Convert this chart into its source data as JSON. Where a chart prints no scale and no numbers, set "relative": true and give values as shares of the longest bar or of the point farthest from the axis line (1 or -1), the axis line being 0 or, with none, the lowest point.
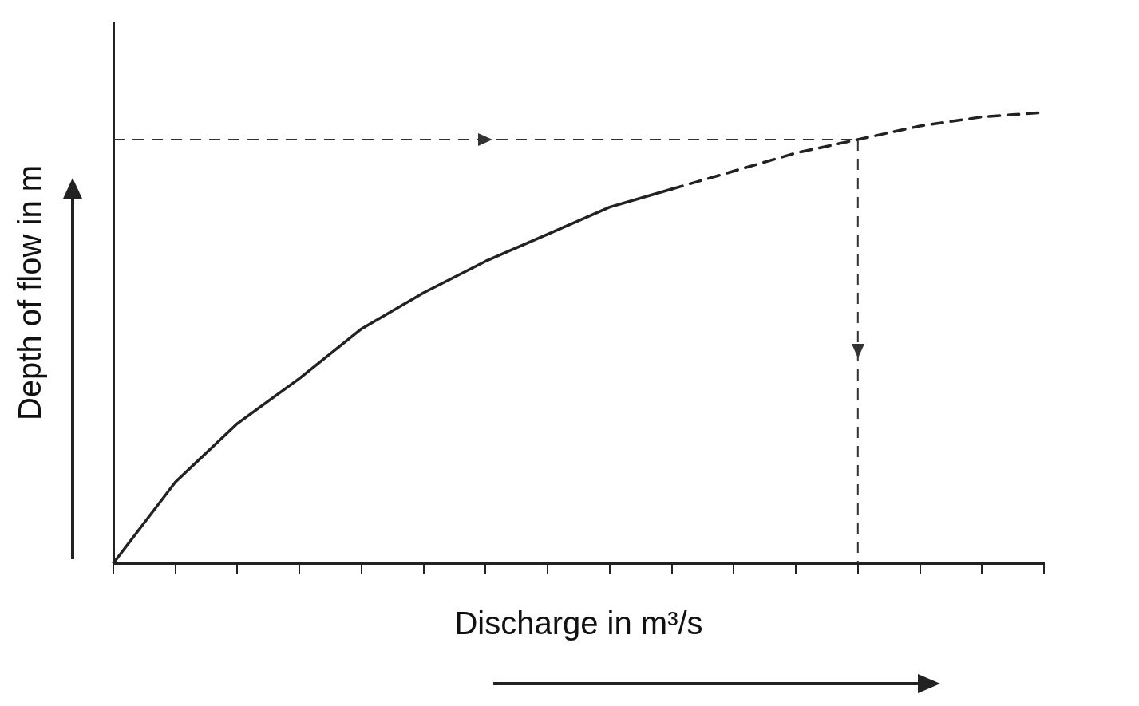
{
  "chart_data": {
    "type": "line",
    "relative": true,
    "xlabel": "Discharge in m³/s",
    "ylabel": "Depth of flow in m",
    "categories": [
      null,
      null,
      null,
      null,
      null,
      null,
      null,
      null,
      null,
      null,
      null,
      null,
      null,
      null,
      null,
      null
    ],
    "grid": false,
    "legend": false,
    "marker": "none",
    "series": [
      {
        "color": "#222222",
        "line_style": "solid",
        "values": [
          0,
          0.18,
          0.31,
          0.41,
          0.52,
          0.6,
          0.67,
          0.73,
          0.79,
          0.83,
          null,
          null,
          null,
          null,
          null,
          null
        ]
      },
      {
        "color": "#222222",
        "line_style": "dashed",
        "values": [
          null,
          null,
          null,
          null,
          null,
          null,
          null,
          null,
          null,
          0.83,
          0.87,
          0.91,
          0.94,
          0.97,
          0.99,
          1
        ]
      }
    ],
    "ref_lines": [
      {
        "axis": "y",
        "value": 0.94,
        "color": "#333333",
        "line_style": "dashed"
      }
    ]
  }
}
